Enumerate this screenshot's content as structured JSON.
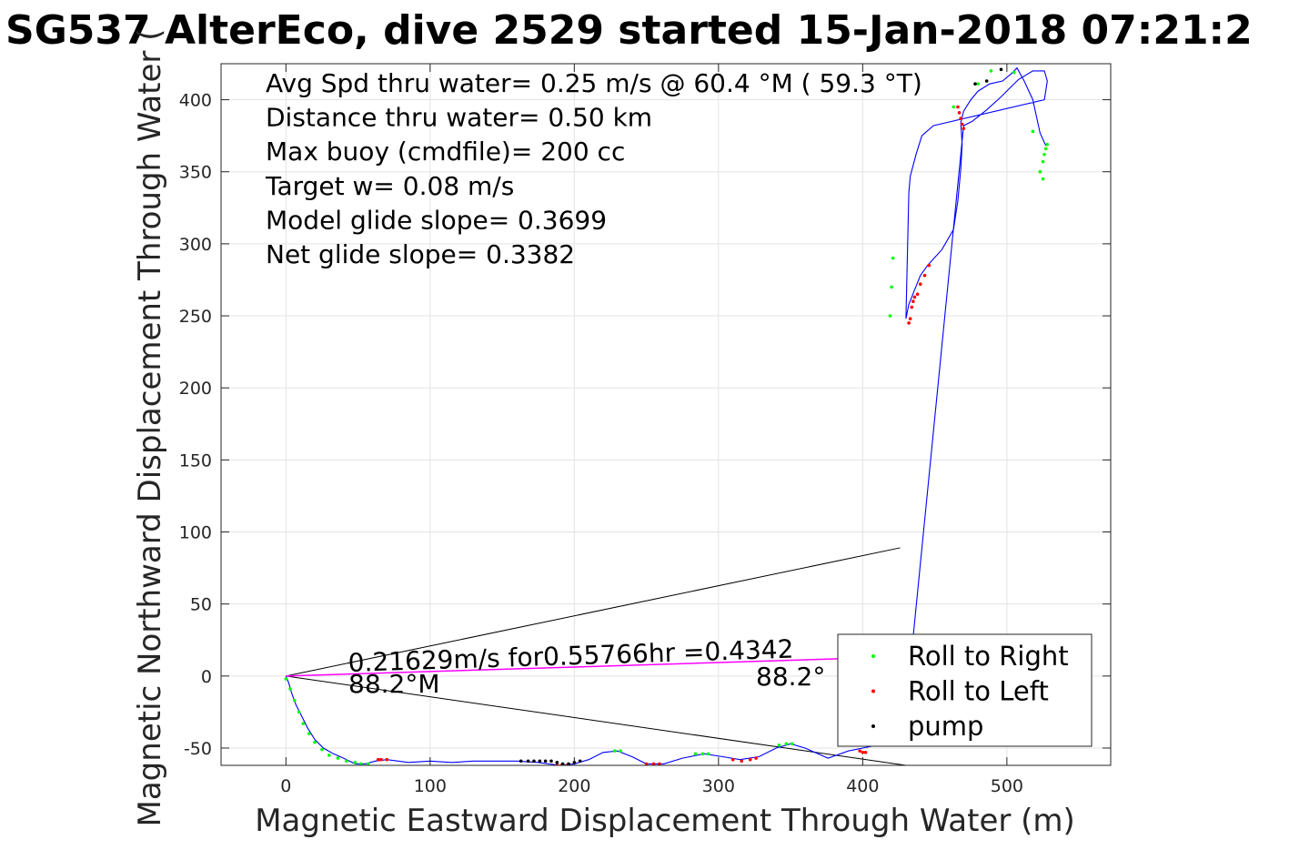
{
  "chart_data": {
    "type": "scatter",
    "title": "SG537 AlterEco, dive 2529 started 15-Jan-2018 07:21:2",
    "xlabel": "Magnetic Eastward Displacement Through Water (m)",
    "ylabel": "Magnetic Northward Displacement Through Water (",
    "xlim": [
      -45,
      572
    ],
    "ylim": [
      -62,
      425
    ],
    "xticks": [
      0,
      100,
      200,
      300,
      400,
      500
    ],
    "yticks": [
      -50,
      0,
      50,
      100,
      150,
      200,
      250,
      300,
      350,
      400
    ],
    "xtick_labels": [
      "0",
      "100",
      "200",
      "300",
      "400",
      "500"
    ],
    "ytick_labels": [
      "-50",
      "0",
      "50",
      "100",
      "150",
      "200",
      "250",
      "300",
      "350",
      "400"
    ],
    "grid": true,
    "info_lines": [
      "Avg Spd thru water=  0.25 m/s @  60.4 °M ( 59.3 °T)",
      "Distance thru water=  0.50 km",
      "Max buoy (cmdfile)= 200 cc",
      "Target w= 0.08 m/s",
      "Model glide slope= 0.3699",
      "Net glide slope= 0.3382"
    ],
    "annotation_line1": "0.21629m/s for0.55766hr =0.4342",
    "annotation_line2": "88.2°M",
    "annotation_line3": "88.2°",
    "series": [
      {
        "name": "track",
        "color": "#0000ff",
        "x": [
          0,
          2,
          4,
          7,
          11,
          15,
          20,
          26,
          33,
          40,
          48,
          55,
          62,
          70,
          85,
          100,
          115,
          130,
          145,
          160,
          175,
          190,
          200,
          210,
          220,
          230,
          240,
          250,
          262,
          275,
          290,
          303,
          315,
          328,
          340,
          350,
          360,
          376,
          390,
          400,
          410,
          418,
          428,
          470,
          476,
          486,
          496,
          502,
          508,
          518,
          526,
          528,
          526,
          449,
          441,
          437,
          433,
          432,
          430,
          432,
          436,
          440,
          445,
          455,
          463,
          466,
          468,
          469,
          468,
          470,
          475,
          480,
          488,
          497,
          503,
          507,
          512,
          518,
          523,
          527
        ],
        "y": [
          0,
          -5,
          -12,
          -20,
          -28,
          -36,
          -44,
          -50,
          -54,
          -57,
          -61,
          -61,
          -59,
          -58,
          -60,
          -59,
          -60,
          -59,
          -59,
          -59,
          -60,
          -62,
          -61,
          -58,
          -53,
          -52,
          -56,
          -61,
          -61,
          -57,
          -54,
          -56,
          -58,
          -56,
          -50,
          -47,
          -50,
          -57,
          -52,
          -50,
          -48,
          -46,
          -44,
          382,
          385,
          393,
          402,
          408,
          414,
          420,
          420,
          413,
          400,
          382,
          375,
          362,
          347,
          336,
          248,
          258,
          268,
          278,
          285,
          296,
          310,
          330,
          352,
          369,
          384,
          392,
          400,
          406,
          411,
          413,
          418,
          422,
          413,
          400,
          377,
          368
        ]
      },
      {
        "name": "Roll to Right",
        "color": "#00ff00",
        "x": [
          0,
          3,
          6,
          9,
          12,
          16,
          20,
          25,
          30,
          36,
          42,
          48,
          52,
          57,
          228,
          232,
          284,
          289,
          293,
          342,
          347,
          351,
          419,
          420,
          421,
          463,
          480,
          489,
          505,
          518,
          523,
          525,
          526,
          527,
          528,
          525
        ],
        "y": [
          -2,
          -9,
          -17,
          -25,
          -33,
          -40,
          -46,
          -51,
          -55,
          -57,
          -59,
          -60,
          -61,
          -61,
          -52,
          -52,
          -54,
          -54,
          -54,
          -48,
          -47,
          -47,
          250,
          270,
          290,
          395,
          411,
          420,
          419,
          378,
          350,
          357,
          362,
          366,
          369,
          345
        ]
      },
      {
        "name": "Roll to Left",
        "color": "#ff0000",
        "x": [
          64,
          66,
          70,
          188,
          191,
          195,
          250,
          255,
          259,
          310,
          316,
          322,
          326,
          398,
          400,
          402,
          432,
          433,
          434,
          435,
          436,
          438,
          440,
          443,
          446,
          466,
          467,
          468,
          469,
          470
        ],
        "y": [
          -58,
          -58,
          -58,
          -62,
          -62,
          -62,
          -61,
          -61,
          -61,
          -58,
          -59,
          -58,
          -57,
          -52,
          -53,
          -53,
          245,
          248,
          256,
          260,
          263,
          265,
          272,
          278,
          285,
          395,
          391,
          387,
          383,
          380
        ]
      },
      {
        "name": "pump",
        "color": "#000000",
        "x": [
          163,
          168,
          172,
          176,
          180,
          184,
          188,
          192,
          196,
          200,
          204,
          478,
          486,
          496
        ],
        "y": [
          -59,
          -59,
          -59,
          -59,
          -59,
          -59,
          -60,
          -61,
          -61,
          -60,
          -59,
          411,
          413,
          421
        ]
      },
      {
        "name": "current",
        "color": "#ff00ff",
        "x": [
          0,
          426
        ],
        "y": [
          0,
          13.3
        ]
      }
    ],
    "cone_lines": [
      {
        "x": [
          0,
          426
        ],
        "y": [
          0,
          89
        ]
      },
      {
        "x": [
          0,
          430
        ],
        "y": [
          0,
          -62
        ]
      }
    ],
    "legend": {
      "placement": "bottom-right",
      "entries": [
        "Roll to Right",
        "Roll to Left",
        "pump"
      ]
    }
  }
}
